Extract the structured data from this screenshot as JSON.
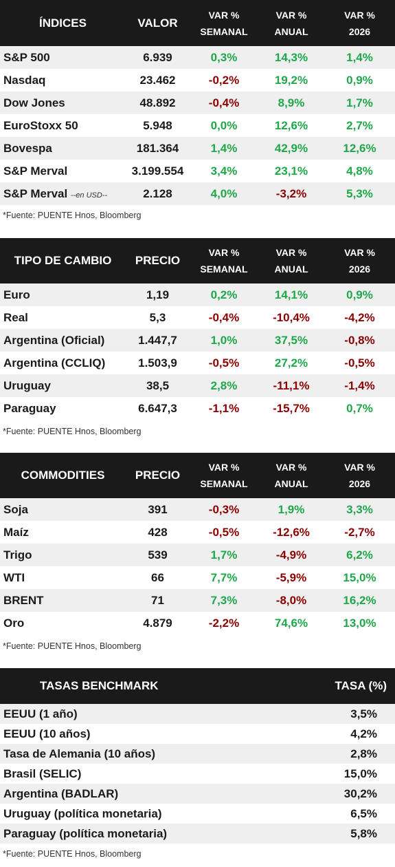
{
  "indices": {
    "headers": [
      "ÍNDICES",
      "VALOR",
      "VAR %",
      "SEMANAL",
      "VAR %",
      "ANUAL",
      "VAR %",
      "2026"
    ],
    "rows": [
      {
        "name": "S&P 500",
        "note": "",
        "value": "6.939",
        "weekly": "0,3%",
        "annual": "14,3%",
        "ytd": "1,4%"
      },
      {
        "name": "Nasdaq",
        "note": "",
        "value": "23.462",
        "weekly": "-0,2%",
        "annual": "19,2%",
        "ytd": "0,9%"
      },
      {
        "name": "Dow Jones",
        "note": "",
        "value": "48.892",
        "weekly": "-0,4%",
        "annual": "8,9%",
        "ytd": "1,7%"
      },
      {
        "name": "EuroStoxx 50",
        "note": "",
        "value": "5.948",
        "weekly": "0,0%",
        "annual": "12,6%",
        "ytd": "2,7%"
      },
      {
        "name": "Bovespa",
        "note": "",
        "value": "181.364",
        "weekly": "1,4%",
        "annual": "42,9%",
        "ytd": "12,6%"
      },
      {
        "name": "S&P Merval",
        "note": "",
        "value": "3.199.554",
        "weekly": "3,4%",
        "annual": "23,1%",
        "ytd": "4,8%"
      },
      {
        "name": "S&P Merval",
        "note": "--en USD--",
        "value": "2.128",
        "weekly": "4,0%",
        "annual": "-3,2%",
        "ytd": "5,3%"
      }
    ],
    "source": "*Fuente: PUENTE Hnos, Bloomberg"
  },
  "fx": {
    "headers": [
      "TIPO DE CAMBIO",
      "PRECIO",
      "VAR %",
      "SEMANAL",
      "VAR %",
      "ANUAL",
      "VAR %",
      "2026"
    ],
    "rows": [
      {
        "name": "Euro",
        "value": "1,19",
        "weekly": "0,2%",
        "annual": "14,1%",
        "ytd": "0,9%"
      },
      {
        "name": "Real",
        "value": "5,3",
        "weekly": "-0,4%",
        "annual": "-10,4%",
        "ytd": "-4,2%"
      },
      {
        "name": "Argentina (Oficial)",
        "value": "1.447,7",
        "weekly": "1,0%",
        "annual": "37,5%",
        "ytd": "-0,8%"
      },
      {
        "name": "Argentina (CCLIQ)",
        "value": "1.503,9",
        "weekly": "-0,5%",
        "annual": "27,2%",
        "ytd": "-0,5%"
      },
      {
        "name": "Uruguay",
        "value": "38,5",
        "weekly": "2,8%",
        "annual": "-11,1%",
        "ytd": "-1,4%"
      },
      {
        "name": "Paraguay",
        "value": "6.647,3",
        "weekly": "-1,1%",
        "annual": "-15,7%",
        "ytd": "0,7%"
      }
    ],
    "source": "*Fuente: PUENTE Hnos, Bloomberg"
  },
  "commodities": {
    "headers": [
      "COMMODITIES",
      "PRECIO",
      "VAR %",
      "SEMANAL",
      "VAR %",
      "ANUAL",
      "VAR %",
      "2026"
    ],
    "rows": [
      {
        "name": "Soja",
        "value": "391",
        "weekly": "-0,3%",
        "annual": "1,9%",
        "ytd": "3,3%"
      },
      {
        "name": "Maíz",
        "value": "428",
        "weekly": "-0,5%",
        "annual": "-12,6%",
        "ytd": "-2,7%"
      },
      {
        "name": "Trigo",
        "value": "539",
        "weekly": "1,7%",
        "annual": "-4,9%",
        "ytd": "6,2%"
      },
      {
        "name": "WTI",
        "value": "66",
        "weekly": "7,7%",
        "annual": "-5,9%",
        "ytd": "15,0%"
      },
      {
        "name": "BRENT",
        "value": "71",
        "weekly": "7,3%",
        "annual": "-8,0%",
        "ytd": "16,2%"
      },
      {
        "name": "Oro",
        "value": "4.879",
        "weekly": "-2,2%",
        "annual": "74,6%",
        "ytd": "13,0%"
      }
    ],
    "source": "*Fuente: PUENTE Hnos, Bloomberg"
  },
  "rates": {
    "headers": [
      "TASAS BENCHMARK",
      "TASA (%)"
    ],
    "rows": [
      {
        "name": "EEUU (1 año)",
        "rate": "3,5%"
      },
      {
        "name": "EEUU (10 años)",
        "rate": "4,2%"
      },
      {
        "name": "Tasa de Alemania (10 años)",
        "rate": "2,8%"
      },
      {
        "name": "Brasil (SELIC)",
        "rate": "15,0%"
      },
      {
        "name": "Argentina (BADLAR)",
        "rate": "30,2%"
      },
      {
        "name": "Uruguay (política monetaria)",
        "rate": "6,5%"
      },
      {
        "name": "Paraguay (política monetaria)",
        "rate": "5,8%"
      }
    ],
    "source": "*Fuente: PUENTE Hnos, Bloomberg"
  },
  "colors": {
    "positive": "#1fa84a",
    "negative": "#8b0000",
    "header_bg": "#1a1a1a",
    "row_alt": "#efefef"
  }
}
